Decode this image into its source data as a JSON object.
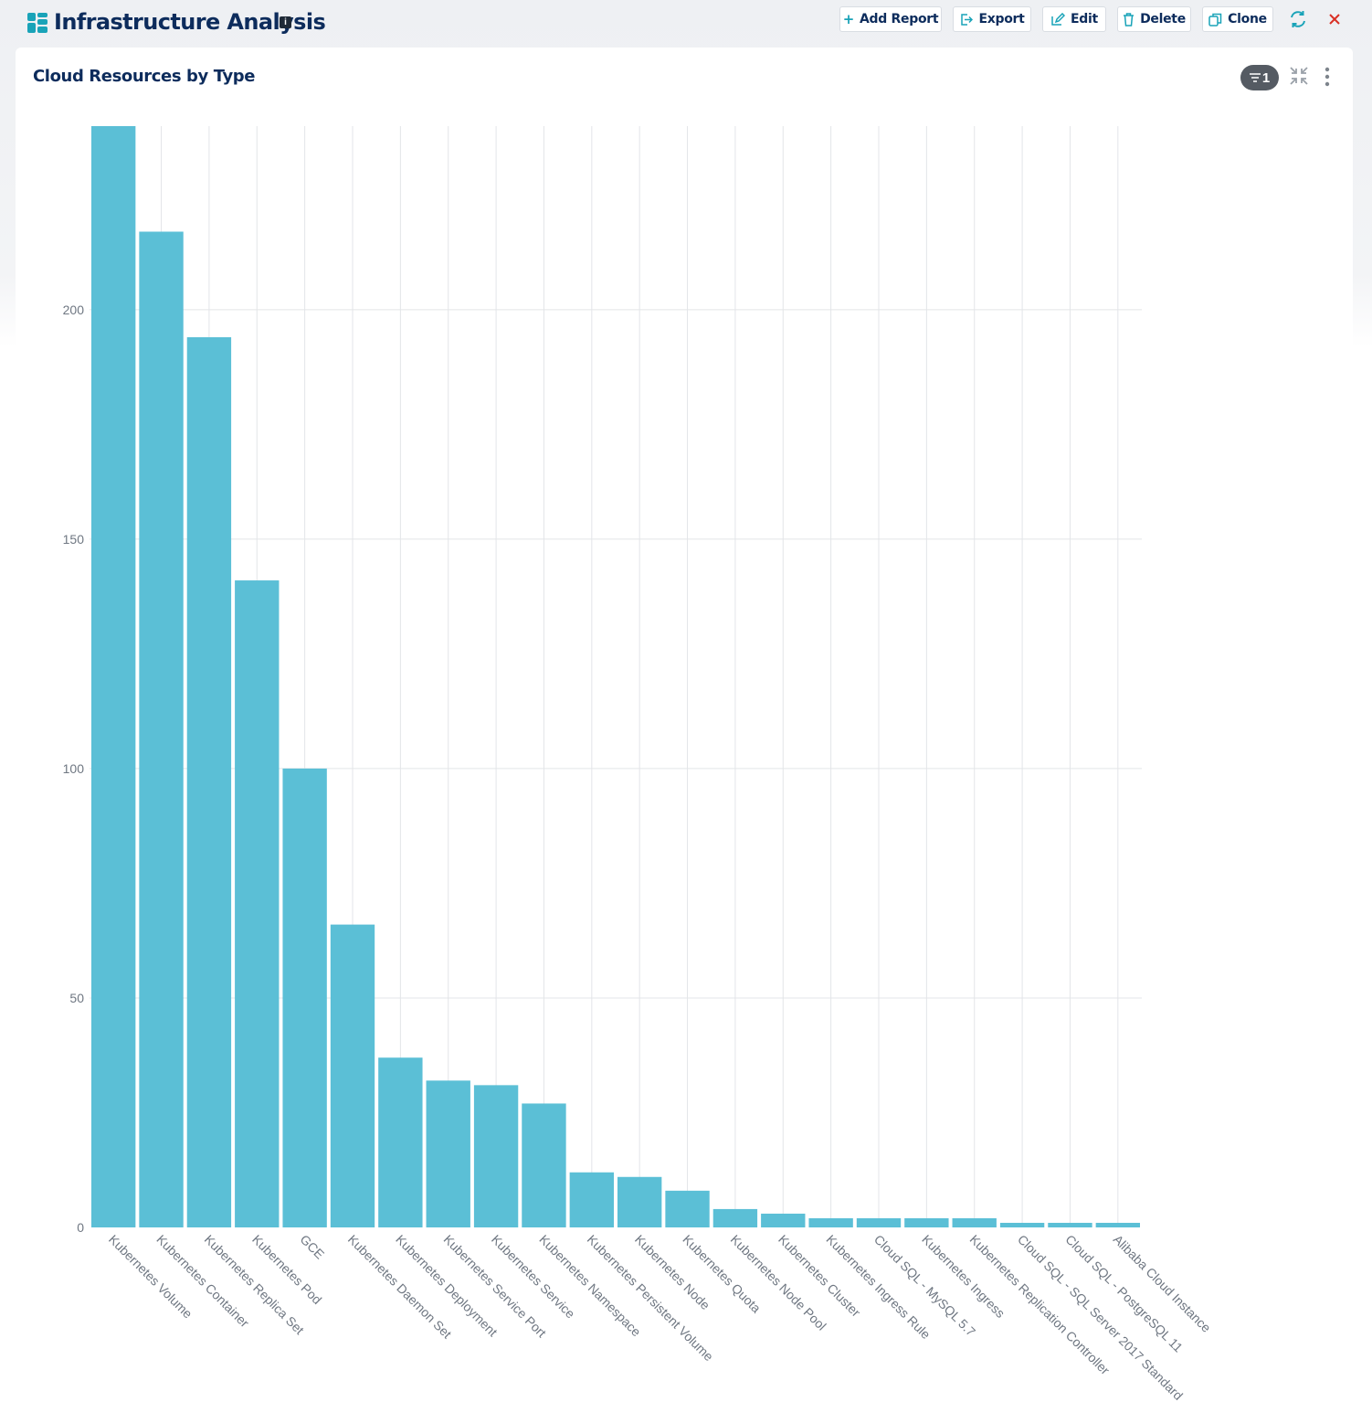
{
  "header": {
    "title": "Infrastructure Analysis",
    "info_icon": "info-icon",
    "app_icon": "dashboard-icon",
    "buttons": [
      {
        "label": "Add Report",
        "icon": "plus-icon"
      },
      {
        "label": "Export",
        "icon": "export-icon"
      },
      {
        "label": "Edit",
        "icon": "edit-icon"
      },
      {
        "label": "Delete",
        "icon": "trash-icon"
      },
      {
        "label": "Clone",
        "icon": "clone-icon"
      }
    ],
    "refresh_icon": "refresh-icon",
    "close_icon": "close-icon"
  },
  "card": {
    "title": "Cloud Resources by Type",
    "filter_count": "1",
    "filter_icon": "filter-icon",
    "collapse_icon": "collapse-icon",
    "menu_icon": "kebab-menu-icon"
  },
  "colors": {
    "bar": "#5bbfd6",
    "title": "#0d2c5c",
    "accent": "#19a3b8",
    "close": "#d93025",
    "grid": "#e3e5e8"
  },
  "chart_data": {
    "type": "bar",
    "categories": [
      "Kubernetes Volume",
      "Kubernetes Container",
      "Kubernetes Replica Set",
      "Kubernetes Pod",
      "GCE",
      "Kubernetes Daemon Set",
      "Kubernetes Deployment",
      "Kubernetes Service Port",
      "Kubernetes Service",
      "Kubernetes Namespace",
      "Kubernetes Persistent Volume",
      "Kubernetes Node",
      "Kubernetes Quota",
      "Kubernetes Node Pool",
      "Kubernetes Cluster",
      "Kubernetes Ingress Rule",
      "Cloud SQL - MySQL 5.7",
      "Kubernetes Ingress",
      "Kubernetes Replication Controller",
      "Cloud SQL - SQL Server 2017 Standard",
      "Cloud SQL - PostgreSQL 11",
      "Alibaba Cloud Instance"
    ],
    "values": [
      240,
      217,
      194,
      141,
      100,
      66,
      37,
      32,
      31,
      27,
      12,
      11,
      8,
      4,
      3,
      2,
      2,
      2,
      2,
      1,
      1,
      1
    ],
    "yticks": [
      0,
      50,
      100,
      150,
      200
    ],
    "ylim": [
      0,
      240
    ],
    "title": "",
    "xlabel": "",
    "ylabel": "",
    "grid": true,
    "legend": "none"
  }
}
